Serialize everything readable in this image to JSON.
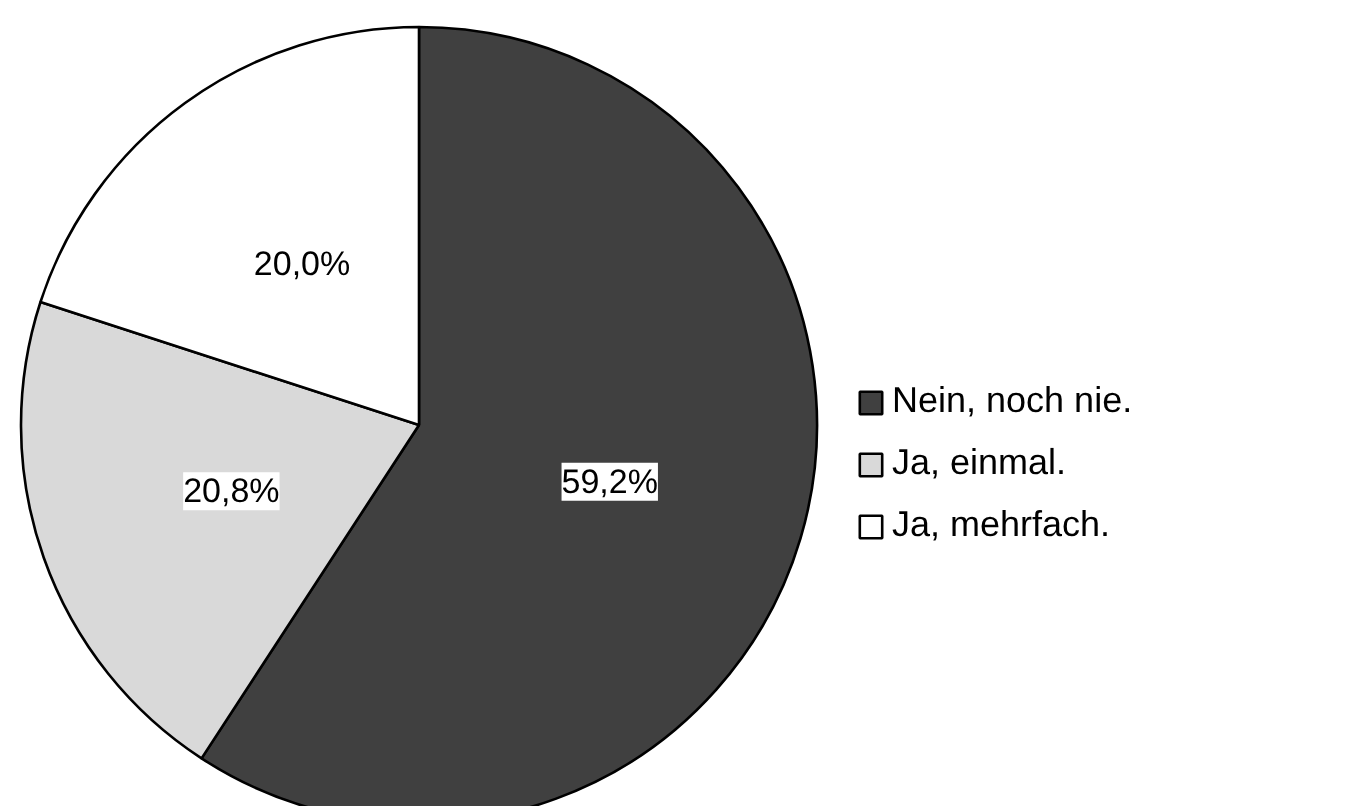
{
  "chart_data": {
    "type": "pie",
    "categories": [
      "Nein, noch nie.",
      "Ja, einmal.",
      "Ja, mehrfach."
    ],
    "values": [
      59.2,
      20.8,
      20.0
    ],
    "colors": [
      "#404040",
      "#d9d9d9",
      "#ffffff"
    ],
    "value_labels": [
      "59,2%",
      "20,8%",
      "20,0%"
    ],
    "legend": "right"
  }
}
